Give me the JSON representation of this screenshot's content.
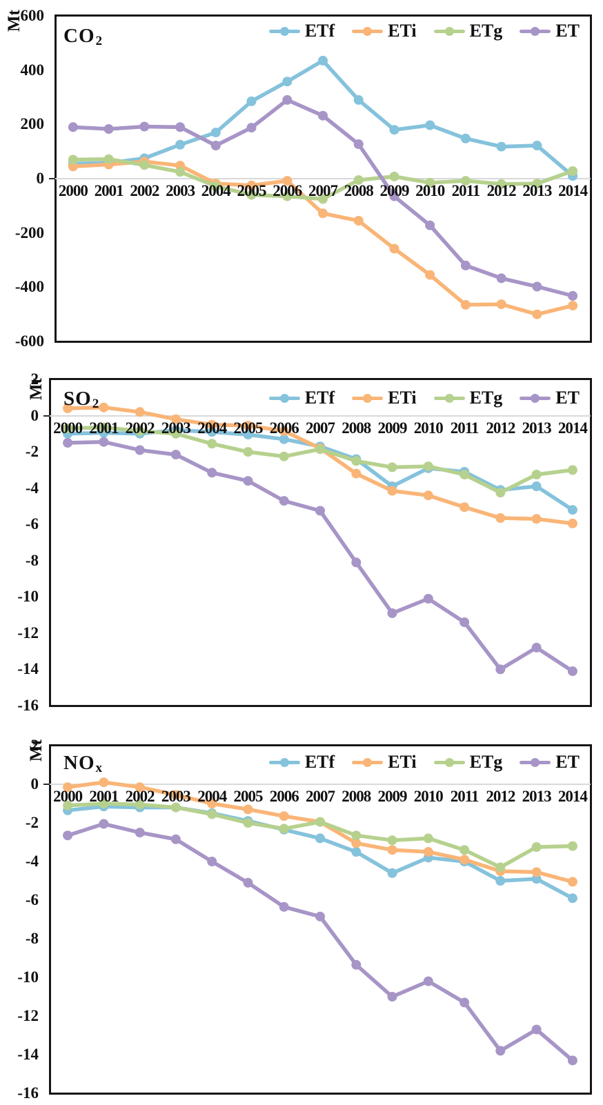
{
  "figure": {
    "unit": "Mt",
    "years": [
      "2000",
      "2001",
      "2002",
      "2003",
      "2004",
      "2005",
      "2006",
      "2007",
      "2008",
      "2009",
      "2010",
      "2011",
      "2012",
      "2013",
      "2014"
    ],
    "colors": {
      "ETf": "#85c2dc",
      "ETi": "#f9b577",
      "ETg": "#b6d18e",
      "ET": "#a795c7",
      "zero_gridline": "#d9d9d9",
      "border": "#161616"
    },
    "legend_labels": [
      "ETf",
      "ETi",
      "ETg",
      "ET"
    ]
  },
  "chart_data": [
    {
      "type": "line",
      "title_main": "CO",
      "title_sub": "2",
      "ylabel": "Mt",
      "categories": [
        "2000",
        "2001",
        "2002",
        "2003",
        "2004",
        "2005",
        "2006",
        "2007",
        "2008",
        "2009",
        "2010",
        "2011",
        "2012",
        "2013",
        "2014"
      ],
      "ylim": [
        -600,
        600
      ],
      "yticks": [
        600,
        400,
        200,
        0,
        -200,
        -400,
        -600
      ],
      "grid": "zero-line-only",
      "legend_position": "top-right",
      "series": [
        {
          "name": "ETf",
          "color": "#85c2dc",
          "values": [
            55,
            58,
            75,
            125,
            170,
            285,
            358,
            435,
            290,
            180,
            197,
            148,
            118,
            122,
            10
          ]
        },
        {
          "name": "ETi",
          "color": "#f9b577",
          "values": [
            45,
            52,
            63,
            48,
            -18,
            -25,
            -8,
            -128,
            -155,
            -258,
            -355,
            -465,
            -463,
            -500,
            -468
          ]
        },
        {
          "name": "ETg",
          "color": "#b6d18e",
          "values": [
            70,
            72,
            50,
            25,
            -28,
            -60,
            -65,
            -75,
            -5,
            8,
            -15,
            -8,
            -20,
            -18,
            28
          ]
        },
        {
          "name": "ET",
          "color": "#a795c7",
          "values": [
            190,
            183,
            192,
            190,
            122,
            188,
            290,
            232,
            127,
            -65,
            -172,
            -320,
            -367,
            -398,
            -432
          ]
        }
      ]
    },
    {
      "type": "line",
      "title_main": "SO",
      "title_sub": "2",
      "ylabel": "Mt",
      "categories": [
        "2000",
        "2001",
        "2002",
        "2003",
        "2004",
        "2005",
        "2006",
        "2007",
        "2008",
        "2009",
        "2010",
        "2011",
        "2012",
        "2013",
        "2014"
      ],
      "ylim": [
        -16,
        2
      ],
      "yticks": [
        2,
        0,
        -2,
        -4,
        -6,
        -8,
        -10,
        -12,
        -14,
        -16
      ],
      "grid": "zero-line-only",
      "legend_position": "top-right",
      "series": [
        {
          "name": "ETf",
          "color": "#85c2dc",
          "values": [
            -1.0,
            -0.95,
            -1.0,
            -0.8,
            -0.9,
            -1.05,
            -1.3,
            -1.7,
            -2.4,
            -3.9,
            -2.9,
            -3.1,
            -4.1,
            -3.9,
            -5.2
          ]
        },
        {
          "name": "ETi",
          "color": "#f9b577",
          "values": [
            0.4,
            0.45,
            0.2,
            -0.2,
            -0.5,
            -0.55,
            -0.85,
            -1.8,
            -3.2,
            -4.15,
            -4.4,
            -5.05,
            -5.65,
            -5.7,
            -5.95
          ]
        },
        {
          "name": "ETg",
          "color": "#b6d18e",
          "values": [
            -0.7,
            -0.65,
            -0.85,
            -1.0,
            -1.55,
            -2.0,
            -2.25,
            -1.85,
            -2.5,
            -2.85,
            -2.8,
            -3.25,
            -4.25,
            -3.25,
            -3.0
          ]
        },
        {
          "name": "ET",
          "color": "#a795c7",
          "values": [
            -1.5,
            -1.45,
            -1.9,
            -2.15,
            -3.15,
            -3.6,
            -4.7,
            -5.25,
            -8.1,
            -10.9,
            -10.1,
            -11.4,
            -14.0,
            -12.8,
            -14.1
          ]
        }
      ]
    },
    {
      "type": "line",
      "title_main": "NO",
      "title_sub": "x",
      "ylabel": "Mt",
      "categories": [
        "2000",
        "2001",
        "2002",
        "2003",
        "2004",
        "2005",
        "2006",
        "2007",
        "2008",
        "2009",
        "2010",
        "2011",
        "2012",
        "2013",
        "2014"
      ],
      "ylim": [
        -16,
        2
      ],
      "yticks": [
        2,
        0,
        -2,
        -4,
        -6,
        -8,
        -10,
        -12,
        -14,
        -16
      ],
      "grid": "zero-line-only",
      "legend_position": "top-right",
      "series": [
        {
          "name": "ETf",
          "color": "#85c2dc",
          "values": [
            -1.35,
            -1.15,
            -1.2,
            -1.2,
            -1.5,
            -1.9,
            -2.35,
            -2.8,
            -3.5,
            -4.6,
            -3.8,
            -4.0,
            -5.0,
            -4.9,
            -5.9
          ]
        },
        {
          "name": "ETi",
          "color": "#f9b577",
          "values": [
            -0.15,
            0.1,
            -0.15,
            -0.55,
            -1.0,
            -1.3,
            -1.65,
            -1.95,
            -3.05,
            -3.4,
            -3.5,
            -3.9,
            -4.5,
            -4.55,
            -5.05
          ]
        },
        {
          "name": "ETg",
          "color": "#b6d18e",
          "values": [
            -1.1,
            -1.0,
            -1.05,
            -1.2,
            -1.55,
            -2.0,
            -2.3,
            -1.95,
            -2.65,
            -2.9,
            -2.8,
            -3.4,
            -4.3,
            -3.25,
            -3.2
          ]
        },
        {
          "name": "ET",
          "color": "#a795c7",
          "values": [
            -2.65,
            -2.05,
            -2.5,
            -2.85,
            -4.0,
            -5.1,
            -6.35,
            -6.85,
            -9.35,
            -11.0,
            -10.2,
            -11.3,
            -13.8,
            -12.7,
            -14.3
          ]
        }
      ]
    }
  ]
}
